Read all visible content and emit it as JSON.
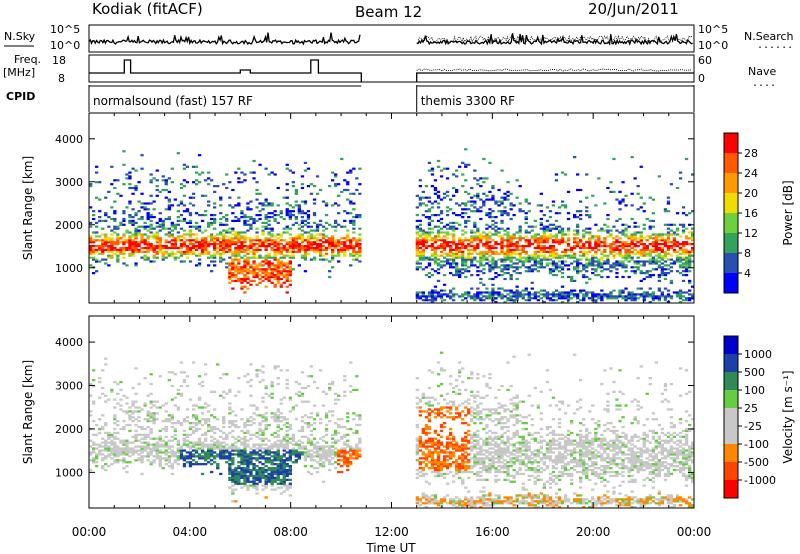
{
  "header": {
    "station": "Kodiak (fitACF)",
    "beam": "Beam 12",
    "date": "20/Jun/2011"
  },
  "aux_labels": {
    "nsky": "N.Sky",
    "nsearch": "N.Search",
    "freq": "Freq.",
    "freq_unit": "[MHz]",
    "nave": "Nave",
    "cpid": "CPID",
    "dots": "......",
    "dots_short": "...."
  },
  "aux_ticks": {
    "noise_top": "10^5",
    "noise_bottom": "10^0",
    "freq_top": "18",
    "freq_bottom": "8",
    "nave_top": "60",
    "nave_bottom": "0"
  },
  "cpid_segments": [
    {
      "label": "normalsound (fast) 157 RF",
      "start_h": 0,
      "end_h": 10.8
    },
    {
      "label": "themis 3300 RF",
      "start_h": 13.0,
      "end_h": 24.0
    }
  ],
  "colors": {
    "power": [
      "#0000ff",
      "#2a4fb3",
      "#34a25a",
      "#6fcf3f",
      "#f0dc00",
      "#ff9a00",
      "#ff5a00",
      "#ff0000"
    ],
    "velocity": [
      "#ff0000",
      "#ff4400",
      "#ff8800",
      "#c8c8c8",
      "#c8c8c8",
      "#66cc44",
      "#2f8a55",
      "#1c3faa",
      "#0000cc"
    ]
  },
  "chart_data": [
    {
      "type": "heatmap",
      "quantity": "power",
      "ylabel": "Slant Range [km]",
      "xlabel": "Time UT",
      "xlim": [
        0,
        24
      ],
      "ylim": [
        180,
        4600
      ],
      "yticks": [
        "1000",
        "2000",
        "3000",
        "4000"
      ],
      "xticks": [
        "00:00",
        "04:00",
        "08:00",
        "12:00",
        "16:00",
        "20:00",
        "00:00"
      ],
      "colorbar_label": "Power [dB]",
      "colorbar_ticks": [
        "4",
        "8",
        "12",
        "16",
        "20",
        "24",
        "28"
      ],
      "data_gap_h": [
        10.8,
        13.0
      ]
    },
    {
      "type": "heatmap",
      "quantity": "velocity",
      "ylabel": "Slant Range [km]",
      "xlabel": "Time UT",
      "xlim": [
        0,
        24
      ],
      "ylim": [
        180,
        4600
      ],
      "yticks": [
        "1000",
        "2000",
        "3000",
        "4000"
      ],
      "xticks": [
        "00:00",
        "04:00",
        "08:00",
        "12:00",
        "16:00",
        "20:00",
        "00:00"
      ],
      "colorbar_label": "Velocity [m s⁻¹]",
      "colorbar_ticks": [
        "1000",
        "500",
        "100",
        "25",
        "-25",
        "-100",
        "-500",
        "-1000"
      ],
      "data_gap_h": [
        10.8,
        13.0
      ]
    }
  ]
}
